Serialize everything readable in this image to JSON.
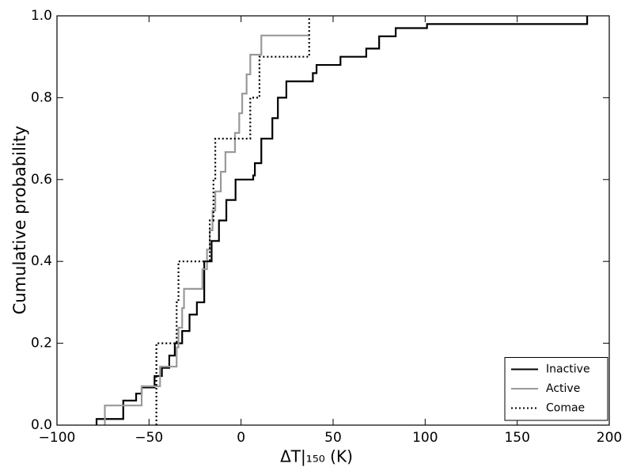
{
  "chart_data": {
    "type": "step",
    "xlabel": "ΔT|₁₅₀ (K)",
    "ylabel": "Cumulative probability",
    "xlim": [
      -100,
      200
    ],
    "xticks": [
      {
        "value": -100,
        "label": "−100"
      },
      {
        "value": -50,
        "label": "−50"
      },
      0,
      50,
      100,
      150,
      200
    ],
    "ylim": [
      0,
      1
    ],
    "yticks": [
      {
        "value": 0,
        "label": "0.0"
      },
      {
        "value": 0.2,
        "label": "0.2"
      },
      {
        "value": 0.4,
        "label": "0.4"
      },
      {
        "value": 0.6,
        "label": "0.6"
      },
      {
        "value": 0.8,
        "label": "0.8"
      },
      {
        "value": 1,
        "label": "1.0"
      }
    ],
    "legend": "lower right",
    "series": [
      {
        "name": "Inactive",
        "color": "#000000",
        "dash": "solid",
        "x": [
          -78.5,
          -78.5,
          -64,
          -57,
          -54,
          -47,
          -43,
          -39,
          -36,
          -32,
          -28,
          -24,
          -20,
          -16,
          -12,
          -8,
          -3,
          6.6,
          7.5,
          11,
          17,
          20,
          24.6,
          39,
          41,
          54,
          68,
          75,
          84,
          101,
          188
        ],
        "values": [
          0,
          0.015,
          0.06,
          0.077,
          0.092,
          0.12,
          0.14,
          0.17,
          0.2,
          0.23,
          0.27,
          0.3,
          0.4,
          0.45,
          0.5,
          0.55,
          0.6,
          0.61,
          0.64,
          0.7,
          0.75,
          0.8,
          0.84,
          0.86,
          0.88,
          0.9,
          0.92,
          0.95,
          0.97,
          0.98,
          1.0
        ]
      },
      {
        "name": "Active",
        "color": "#999999",
        "dash": "solid",
        "x": [
          -74,
          -74,
          -54,
          -44,
          -35,
          -34,
          -32,
          -31,
          -21,
          -18.5,
          -17,
          -15.5,
          -14,
          -11,
          -8.5,
          -3.3,
          -1,
          0.6,
          3,
          5,
          11,
          37
        ],
        "values": [
          0,
          0.048,
          0.095,
          0.143,
          0.19,
          0.238,
          0.286,
          0.333,
          0.381,
          0.429,
          0.476,
          0.524,
          0.571,
          0.619,
          0.667,
          0.714,
          0.762,
          0.81,
          0.857,
          0.905,
          0.952,
          0.952
        ]
      },
      {
        "name": "Comae",
        "color": "#000000",
        "dash": "dotted",
        "x": [
          -46,
          -46,
          -35,
          -34,
          -17,
          -15,
          -14,
          5,
          10,
          37
        ],
        "values": [
          0,
          0.2,
          0.3,
          0.4,
          0.5,
          0.6,
          0.7,
          0.8,
          0.9,
          1.0
        ]
      }
    ]
  }
}
